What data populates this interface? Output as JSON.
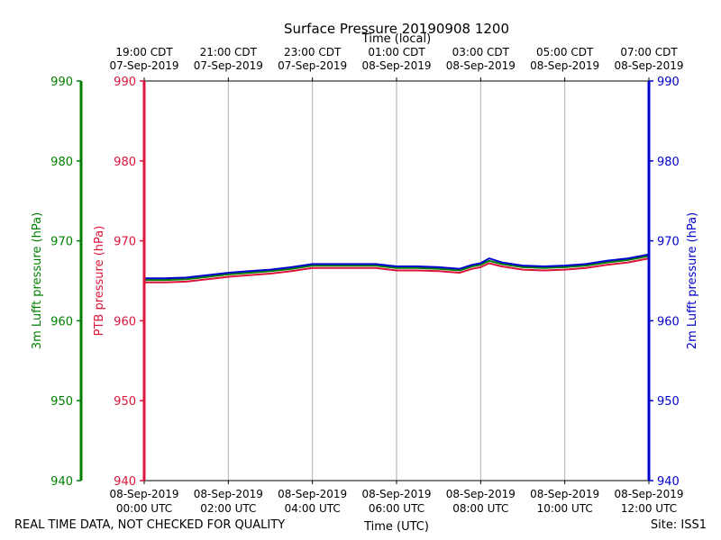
{
  "chart_data": {
    "type": "line",
    "title": "Surface Pressure 20190908 1200",
    "top_axis_label": "Time (local)",
    "bottom_axis_label": "Time (UTC)",
    "top_ticks": [
      {
        "line1": "19:00 CDT",
        "line2": "07-Sep-2019"
      },
      {
        "line1": "21:00 CDT",
        "line2": "07-Sep-2019"
      },
      {
        "line1": "23:00 CDT",
        "line2": "07-Sep-2019"
      },
      {
        "line1": "01:00 CDT",
        "line2": "08-Sep-2019"
      },
      {
        "line1": "03:00 CDT",
        "line2": "08-Sep-2019"
      },
      {
        "line1": "05:00 CDT",
        "line2": "08-Sep-2019"
      },
      {
        "line1": "07:00 CDT",
        "line2": "08-Sep-2019"
      }
    ],
    "bottom_ticks": [
      {
        "line1": "08-Sep-2019",
        "line2": "00:00 UTC"
      },
      {
        "line1": "08-Sep-2019",
        "line2": "02:00 UTC"
      },
      {
        "line1": "08-Sep-2019",
        "line2": "04:00 UTC"
      },
      {
        "line1": "08-Sep-2019",
        "line2": "06:00 UTC"
      },
      {
        "line1": "08-Sep-2019",
        "line2": "08:00 UTC"
      },
      {
        "line1": "08-Sep-2019",
        "line2": "10:00 UTC"
      },
      {
        "line1": "08-Sep-2019",
        "line2": "12:00 UTC"
      }
    ],
    "xlim_hours_utc": [
      0,
      12
    ],
    "ylim": [
      940,
      990
    ],
    "yticks": [
      940,
      950,
      960,
      970,
      980,
      990
    ],
    "grid": "vertical",
    "axes": [
      {
        "label": "3m Lufft pressure (hPa)",
        "color": "#008000"
      },
      {
        "label": "PTB pressure (hPa)",
        "color": "#dc143c"
      },
      {
        "label": "2m Lufft pressure (hPa)",
        "color": "#0000cd"
      }
    ],
    "x": [
      0,
      0.5,
      1,
      1.5,
      2,
      2.5,
      3,
      3.5,
      4,
      4.5,
      5,
      5.5,
      6,
      6.5,
      7,
      7.5,
      7.8,
      8,
      8.2,
      8.5,
      9,
      9.5,
      10,
      10.5,
      11,
      11.5,
      12
    ],
    "series": [
      {
        "color": "#008000",
        "values": [
          965.1,
          965.1,
          965.2,
          965.5,
          965.8,
          966.0,
          966.2,
          966.5,
          966.9,
          966.9,
          966.9,
          966.9,
          966.6,
          966.6,
          966.5,
          966.3,
          966.8,
          967.0,
          967.5,
          967.1,
          966.7,
          966.6,
          966.7,
          966.9,
          967.3,
          967.6,
          968.1
        ]
      },
      {
        "color": "#dc143c",
        "values": [
          964.8,
          964.8,
          964.9,
          965.2,
          965.5,
          965.7,
          965.9,
          966.2,
          966.6,
          966.6,
          966.6,
          966.6,
          966.3,
          966.3,
          966.2,
          966.0,
          966.5,
          966.7,
          967.2,
          966.8,
          966.4,
          966.3,
          966.4,
          966.6,
          967.0,
          967.3,
          967.8
        ]
      },
      {
        "color": "#0000cd",
        "values": [
          965.3,
          965.3,
          965.4,
          965.7,
          966.0,
          966.2,
          966.4,
          966.7,
          967.1,
          967.1,
          967.1,
          967.1,
          966.8,
          966.8,
          966.7,
          966.5,
          967.0,
          967.2,
          967.8,
          967.3,
          966.9,
          966.8,
          966.9,
          967.1,
          967.5,
          967.8,
          968.3
        ]
      }
    ]
  },
  "footer": {
    "left": "REAL TIME DATA, NOT CHECKED FOR QUALITY",
    "right": "Site: ISS1"
  }
}
